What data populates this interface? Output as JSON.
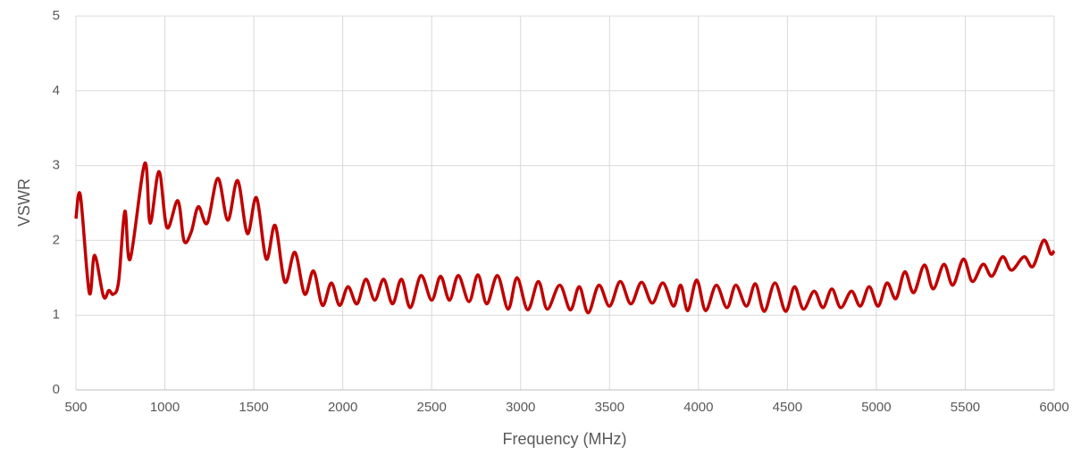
{
  "chart_data": {
    "type": "line",
    "x_label": "Frequency (MHz)",
    "y_label": "VSWR",
    "x": [
      500,
      525,
      575,
      605,
      655,
      685,
      710,
      740,
      775,
      805,
      887,
      917,
      967,
      1012,
      1073,
      1108,
      1148,
      1188,
      1238,
      1298,
      1354,
      1409,
      1464,
      1515,
      1570,
      1620,
      1675,
      1731,
      1786,
      1836,
      1886,
      1936,
      1982,
      2030,
      2080,
      2130,
      2180,
      2230,
      2280,
      2330,
      2380,
      2440,
      2500,
      2550,
      2600,
      2650,
      2710,
      2760,
      2810,
      2870,
      2930,
      2980,
      3040,
      3100,
      3150,
      3220,
      3280,
      3330,
      3380,
      3440,
      3500,
      3560,
      3620,
      3680,
      3740,
      3800,
      3860,
      3900,
      3940,
      3990,
      4040,
      4100,
      4160,
      4210,
      4270,
      4320,
      4370,
      4430,
      4490,
      4540,
      4590,
      4650,
      4700,
      4750,
      4800,
      4860,
      4910,
      4960,
      5010,
      5060,
      5110,
      5160,
      5210,
      5270,
      5320,
      5380,
      5430,
      5490,
      5540,
      5600,
      5650,
      5710,
      5760,
      5830,
      5880,
      5940,
      5980,
      6000
    ],
    "series": [
      {
        "name": "VSWR",
        "color": "#c00000",
        "values": [
          2.29,
          2.6,
          1.3,
          1.8,
          1.25,
          1.33,
          1.28,
          1.45,
          2.39,
          1.75,
          3.03,
          2.23,
          2.92,
          2.17,
          2.53,
          1.99,
          2.11,
          2.45,
          2.23,
          2.83,
          2.27,
          2.8,
          2.09,
          2.57,
          1.75,
          2.2,
          1.44,
          1.84,
          1.28,
          1.59,
          1.13,
          1.43,
          1.13,
          1.38,
          1.15,
          1.48,
          1.2,
          1.48,
          1.15,
          1.48,
          1.1,
          1.53,
          1.2,
          1.52,
          1.2,
          1.53,
          1.18,
          1.54,
          1.15,
          1.53,
          1.08,
          1.5,
          1.07,
          1.45,
          1.08,
          1.4,
          1.07,
          1.38,
          1.03,
          1.4,
          1.12,
          1.45,
          1.15,
          1.44,
          1.16,
          1.43,
          1.12,
          1.4,
          1.06,
          1.47,
          1.06,
          1.4,
          1.1,
          1.4,
          1.12,
          1.42,
          1.05,
          1.43,
          1.05,
          1.38,
          1.08,
          1.32,
          1.1,
          1.35,
          1.1,
          1.32,
          1.12,
          1.38,
          1.12,
          1.43,
          1.22,
          1.58,
          1.3,
          1.67,
          1.35,
          1.68,
          1.4,
          1.75,
          1.45,
          1.68,
          1.52,
          1.78,
          1.6,
          1.78,
          1.65,
          2.0,
          1.82,
          1.86
        ]
      }
    ],
    "xlim": [
      500,
      6000
    ],
    "xticks": [
      500,
      1000,
      1500,
      2000,
      2500,
      3000,
      3500,
      4000,
      4500,
      5000,
      5500,
      6000
    ],
    "ylim": [
      0,
      5
    ],
    "yticks": [
      0,
      1,
      2,
      3,
      4,
      5
    ],
    "grid": true
  }
}
